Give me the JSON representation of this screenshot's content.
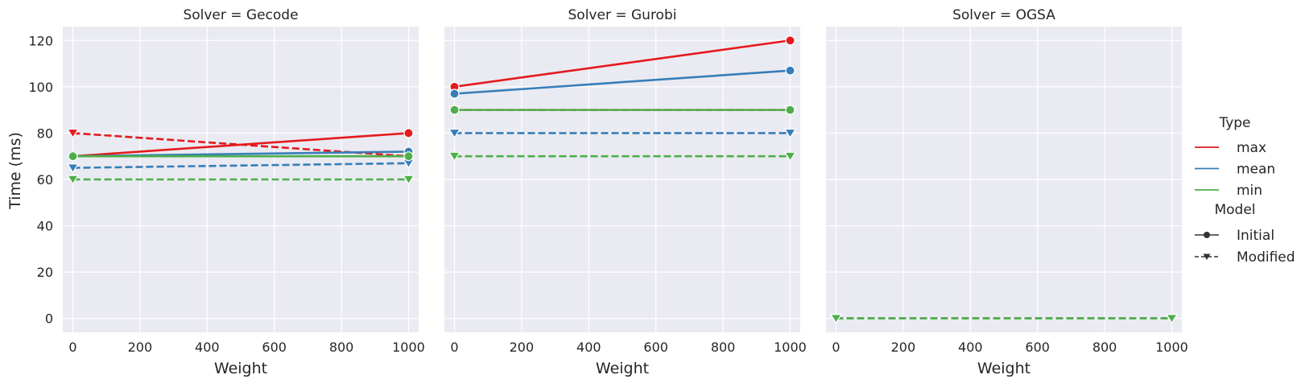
{
  "figure": {
    "y_axis_label": "Time (ms)",
    "x_axis_label": "Weight",
    "panel_title_prefix": "Solver = "
  },
  "colors": {
    "background": "#eaeaf2",
    "grid": "#ffffff",
    "max": "#e41a1c",
    "mean": "#377eb8",
    "min": "#4daf4a",
    "legend_marker": "#333333"
  },
  "legend": {
    "type_title": "Type",
    "type_entries": [
      "max",
      "mean",
      "min"
    ],
    "model_title": "Model",
    "model_entries": [
      {
        "label": "Initial",
        "marker": "circle",
        "line": "solid"
      },
      {
        "label": "Modified",
        "marker": "triangle-down",
        "line": "dashed"
      }
    ],
    "placement": "right"
  },
  "chart_data": [
    {
      "type": "line",
      "title": "Solver = Gecode",
      "solver": "Gecode",
      "xlabel": "Weight",
      "ylabel": "Time (ms)",
      "x": [
        0,
        1000
      ],
      "xticks": [
        "0",
        "200",
        "400",
        "600",
        "800",
        "1000"
      ],
      "yticks": [
        "0",
        "20",
        "40",
        "60",
        "80",
        "100",
        "120"
      ],
      "xlim": [
        -30,
        1030
      ],
      "ylim": [
        -6,
        126
      ],
      "grid": true,
      "series": [
        {
          "type": "max",
          "model": "Initial",
          "values": [
            70,
            80
          ]
        },
        {
          "type": "mean",
          "model": "Initial",
          "values": [
            70,
            72
          ]
        },
        {
          "type": "min",
          "model": "Initial",
          "values": [
            70,
            70
          ]
        },
        {
          "type": "max",
          "model": "Modified",
          "values": [
            80,
            70
          ]
        },
        {
          "type": "mean",
          "model": "Modified",
          "values": [
            65,
            67
          ]
        },
        {
          "type": "min",
          "model": "Modified",
          "values": [
            60,
            60
          ]
        }
      ]
    },
    {
      "type": "line",
      "title": "Solver = Gurobi",
      "solver": "Gurobi",
      "xlabel": "Weight",
      "ylabel": "Time (ms)",
      "x": [
        0,
        1000
      ],
      "xticks": [
        "0",
        "200",
        "400",
        "600",
        "800",
        "1000"
      ],
      "yticks": [
        "0",
        "20",
        "40",
        "60",
        "80",
        "100",
        "120"
      ],
      "xlim": [
        -30,
        1030
      ],
      "ylim": [
        -6,
        126
      ],
      "grid": true,
      "series": [
        {
          "type": "max",
          "model": "Initial",
          "values": [
            100,
            120
          ]
        },
        {
          "type": "mean",
          "model": "Initial",
          "values": [
            97,
            107
          ]
        },
        {
          "type": "min",
          "model": "Initial",
          "values": [
            90,
            90
          ]
        },
        {
          "type": "max",
          "model": "Modified",
          "values": [
            90,
            90
          ]
        },
        {
          "type": "mean",
          "model": "Modified",
          "values": [
            80,
            80
          ]
        },
        {
          "type": "min",
          "model": "Modified",
          "values": [
            70,
            70
          ]
        }
      ]
    },
    {
      "type": "line",
      "title": "Solver = OGSA",
      "solver": "OGSA",
      "xlabel": "Weight",
      "ylabel": "Time (ms)",
      "x": [
        0,
        1000
      ],
      "xticks": [
        "0",
        "200",
        "400",
        "600",
        "800",
        "1000"
      ],
      "yticks": [
        "0",
        "20",
        "40",
        "60",
        "80",
        "100",
        "120"
      ],
      "xlim": [
        -30,
        1030
      ],
      "ylim": [
        -6,
        126
      ],
      "grid": true,
      "series": [
        {
          "type": "max",
          "model": "Modified",
          "values": [
            0,
            0
          ]
        },
        {
          "type": "mean",
          "model": "Modified",
          "values": [
            0,
            0
          ]
        },
        {
          "type": "min",
          "model": "Modified",
          "values": [
            0,
            0
          ]
        }
      ]
    }
  ]
}
